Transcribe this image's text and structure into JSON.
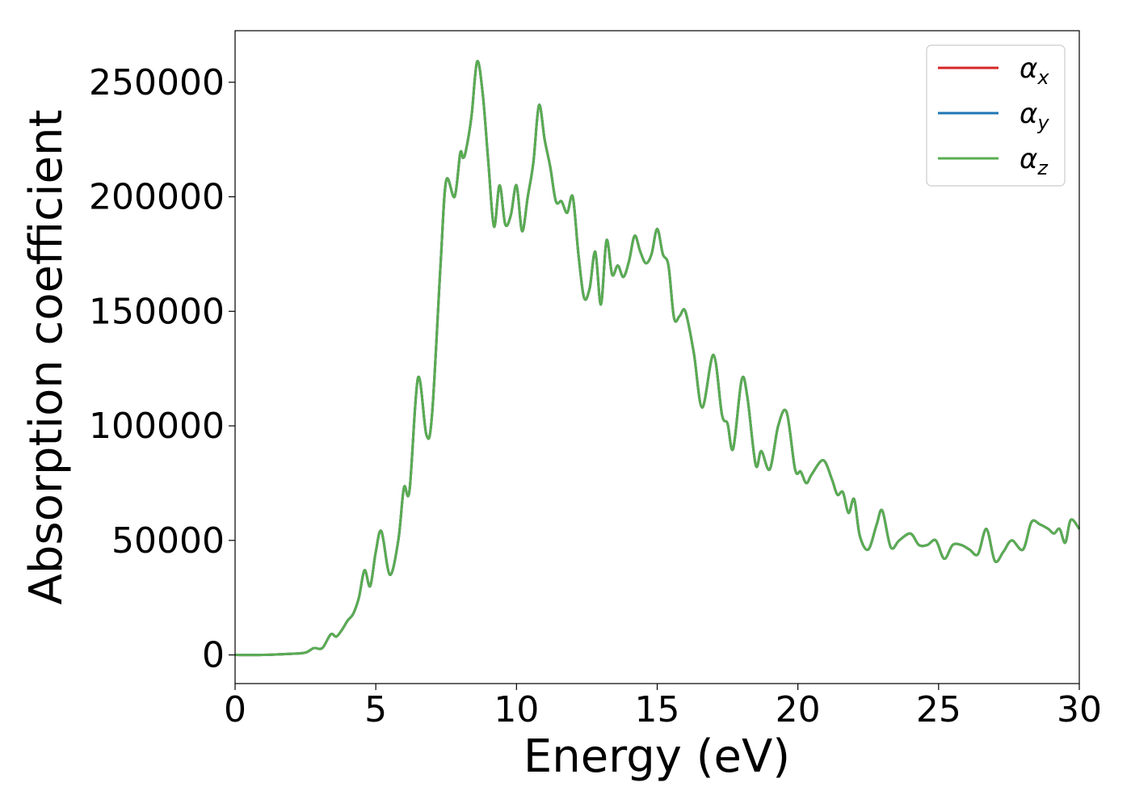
{
  "chart_data": {
    "type": "line",
    "title": "",
    "xlabel": "Energy (eV)",
    "ylabel": "Absorption coefficient",
    "xlim": [
      0,
      30
    ],
    "ylim": [
      -12500,
      272500
    ],
    "xticks": [
      0,
      5,
      10,
      15,
      20,
      25,
      30
    ],
    "yticks": [
      0,
      50000,
      100000,
      150000,
      200000,
      250000
    ],
    "grid": false,
    "legend": {
      "position": "top-right"
    },
    "x": [
      0,
      1,
      2,
      2.5,
      2.8,
      3.1,
      3.4,
      3.6,
      3.8,
      4.0,
      4.2,
      4.4,
      4.6,
      4.8,
      5.0,
      5.2,
      5.5,
      5.8,
      6.0,
      6.2,
      6.5,
      6.8,
      7.0,
      7.3,
      7.5,
      7.8,
      8.0,
      8.1,
      8.2,
      8.4,
      8.6,
      8.8,
      9.0,
      9.2,
      9.4,
      9.6,
      9.8,
      10.0,
      10.2,
      10.4,
      10.6,
      10.8,
      11.0,
      11.2,
      11.4,
      11.6,
      11.8,
      12.0,
      12.2,
      12.4,
      12.6,
      12.8,
      13.0,
      13.2,
      13.4,
      13.6,
      13.8,
      14.0,
      14.2,
      14.4,
      14.6,
      14.8,
      15.0,
      15.2,
      15.4,
      15.6,
      15.8,
      16.0,
      16.3,
      16.6,
      17.0,
      17.3,
      17.5,
      17.7,
      18.0,
      18.2,
      18.5,
      18.7,
      19.0,
      19.3,
      19.6,
      19.9,
      20.1,
      20.3,
      20.5,
      20.9,
      21.2,
      21.4,
      21.6,
      21.8,
      22.0,
      22.2,
      22.5,
      22.8,
      23.0,
      23.3,
      23.6,
      24.0,
      24.3,
      24.6,
      24.9,
      25.2,
      25.5,
      25.8,
      26.1,
      26.4,
      26.7,
      27.0,
      27.3,
      27.6,
      28.0,
      28.3,
      28.6,
      28.9,
      29.1,
      29.3,
      29.5,
      29.7,
      30.0
    ],
    "series": [
      {
        "name": "α_x",
        "color": "#d62728",
        "y": [
          0,
          0,
          500,
          1000,
          3000,
          3000,
          9000,
          8000,
          11000,
          15000,
          18000,
          25000,
          37000,
          30000,
          45000,
          54000,
          35000,
          50000,
          73000,
          72000,
          121000,
          96000,
          105000,
          170000,
          207000,
          200000,
          219000,
          217000,
          220000,
          235000,
          259000,
          245000,
          215000,
          187000,
          205000,
          188000,
          192000,
          205000,
          185000,
          200000,
          215000,
          240000,
          225000,
          213000,
          198000,
          198000,
          193000,
          200000,
          175000,
          156000,
          160000,
          176000,
          153000,
          181000,
          166000,
          170000,
          165000,
          172000,
          183000,
          176000,
          171000,
          175000,
          186000,
          175000,
          170000,
          147000,
          148000,
          150000,
          132000,
          108000,
          131000,
          105000,
          101000,
          90000,
          120000,
          113000,
          83000,
          89000,
          81000,
          100000,
          106000,
          81000,
          80000,
          75000,
          79000,
          85000,
          77000,
          70000,
          71000,
          62000,
          68000,
          52000,
          46000,
          57000,
          63000,
          47000,
          50000,
          53000,
          48000,
          48000,
          50000,
          42000,
          48000,
          48000,
          46000,
          44000,
          55000,
          41000,
          45000,
          50000,
          46000,
          58000,
          57000,
          55000,
          53000,
          55000,
          49000,
          59000,
          55000
        ]
      },
      {
        "name": "α_y",
        "color": "#1f77b4",
        "y": [
          0,
          0,
          500,
          1000,
          3000,
          3000,
          9000,
          8000,
          11000,
          15000,
          18000,
          25000,
          37000,
          30000,
          45000,
          54000,
          35000,
          50000,
          73000,
          72000,
          121000,
          96000,
          105000,
          170000,
          207000,
          200000,
          219000,
          217000,
          220000,
          235000,
          259000,
          245000,
          215000,
          187000,
          205000,
          188000,
          192000,
          205000,
          185000,
          200000,
          215000,
          240000,
          225000,
          213000,
          198000,
          198000,
          193000,
          200000,
          175000,
          156000,
          160000,
          176000,
          153000,
          181000,
          166000,
          170000,
          165000,
          172000,
          183000,
          176000,
          171000,
          175000,
          186000,
          175000,
          170000,
          147000,
          148000,
          150000,
          132000,
          108000,
          131000,
          105000,
          101000,
          90000,
          120000,
          113000,
          83000,
          89000,
          81000,
          100000,
          106000,
          81000,
          80000,
          75000,
          79000,
          85000,
          77000,
          70000,
          71000,
          62000,
          68000,
          52000,
          46000,
          57000,
          63000,
          47000,
          50000,
          53000,
          48000,
          48000,
          50000,
          42000,
          48000,
          48000,
          46000,
          44000,
          55000,
          41000,
          45000,
          50000,
          46000,
          58000,
          57000,
          55000,
          53000,
          55000,
          49000,
          59000,
          55000
        ]
      },
      {
        "name": "α_z",
        "color": "#5aac52",
        "y": [
          0,
          0,
          500,
          1000,
          3000,
          3000,
          9000,
          8000,
          11000,
          15000,
          18000,
          25000,
          37000,
          30000,
          45000,
          54000,
          35000,
          50000,
          73000,
          72000,
          121000,
          96000,
          105000,
          170000,
          207000,
          200000,
          219000,
          217000,
          220000,
          235000,
          259000,
          245000,
          215000,
          187000,
          205000,
          188000,
          192000,
          205000,
          185000,
          200000,
          215000,
          240000,
          225000,
          213000,
          198000,
          198000,
          193000,
          200000,
          175000,
          156000,
          160000,
          176000,
          153000,
          181000,
          166000,
          170000,
          165000,
          172000,
          183000,
          176000,
          171000,
          175000,
          186000,
          175000,
          170000,
          147000,
          148000,
          150000,
          132000,
          108000,
          131000,
          105000,
          101000,
          90000,
          120000,
          113000,
          83000,
          89000,
          81000,
          100000,
          106000,
          81000,
          80000,
          75000,
          79000,
          85000,
          77000,
          70000,
          71000,
          62000,
          68000,
          52000,
          46000,
          57000,
          63000,
          47000,
          50000,
          53000,
          48000,
          48000,
          50000,
          42000,
          48000,
          48000,
          46000,
          44000,
          55000,
          41000,
          45000,
          50000,
          46000,
          58000,
          57000,
          55000,
          53000,
          55000,
          49000,
          59000,
          55000
        ]
      }
    ]
  }
}
